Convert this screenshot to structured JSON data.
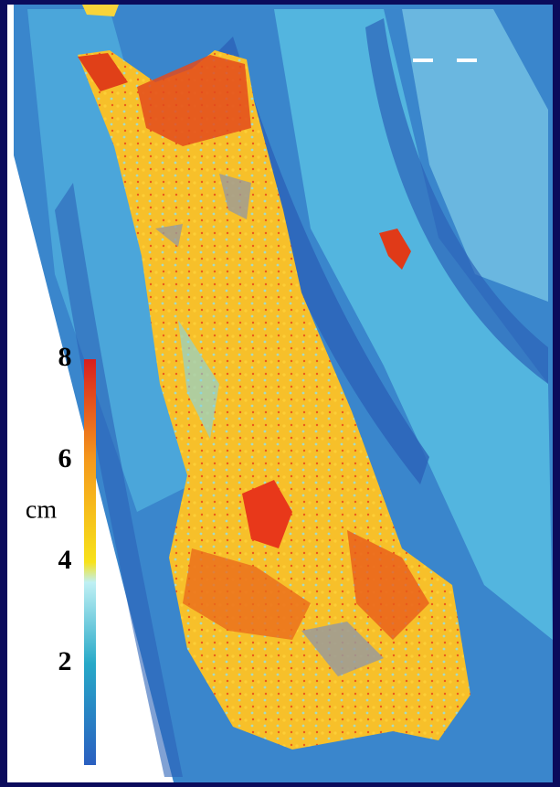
{
  "colorbar": {
    "label": "cm",
    "lim": [
      0,
      8
    ],
    "ticks": [
      2,
      4,
      6,
      8
    ]
  }
}
